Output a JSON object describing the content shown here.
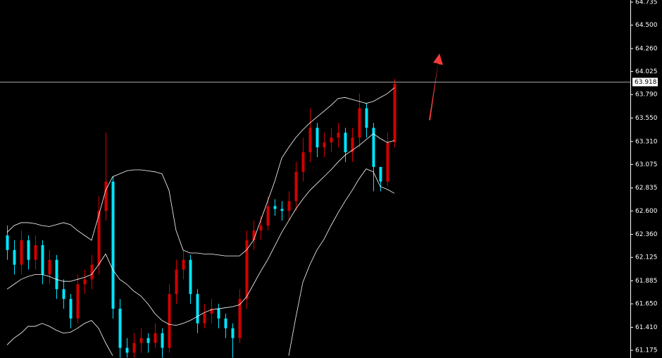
{
  "chart_data": {
    "type": "candlestick",
    "ohlc": {
      "open": [
        62.35,
        62.2,
        62.05,
        62.3,
        62.1,
        62.25,
        61.95,
        62.1,
        61.8,
        61.7,
        61.5,
        61.85,
        61.9,
        62.05,
        62.6,
        62.9,
        61.6,
        61.2,
        61.15,
        61.25,
        61.3,
        61.25,
        61.35,
        61.2,
        61.75,
        62.0,
        62.1,
        61.75,
        61.45,
        61.55,
        61.6,
        61.5,
        61.4,
        61.3,
        61.7,
        62.3,
        62.4,
        62.45,
        62.65,
        62.62,
        62.6,
        62.7,
        63.0,
        63.2,
        63.45,
        63.25,
        63.3,
        63.35,
        63.4,
        63.2,
        63.35,
        63.65,
        63.45,
        63.05,
        62.9,
        63.3
      ],
      "high": [
        62.45,
        62.3,
        62.4,
        62.35,
        62.35,
        62.3,
        62.2,
        62.15,
        61.9,
        61.75,
        61.95,
        62.0,
        62.15,
        62.75,
        63.4,
        62.95,
        61.7,
        61.3,
        61.35,
        61.4,
        61.35,
        61.45,
        61.4,
        61.85,
        62.1,
        62.2,
        62.15,
        61.8,
        61.65,
        61.7,
        61.65,
        61.55,
        61.45,
        61.8,
        62.4,
        62.5,
        62.55,
        62.75,
        62.72,
        62.7,
        62.8,
        63.1,
        63.35,
        63.65,
        63.5,
        63.4,
        63.45,
        63.5,
        63.45,
        63.45,
        63.8,
        63.7,
        63.5,
        63.05,
        63.4,
        63.95
      ],
      "low": [
        62.1,
        61.95,
        61.95,
        62.0,
        62.0,
        61.85,
        61.85,
        61.7,
        61.6,
        61.4,
        61.45,
        61.75,
        61.8,
        61.95,
        62.5,
        61.5,
        61.1,
        61.1,
        61.1,
        61.15,
        61.15,
        61.2,
        61.1,
        61.15,
        61.65,
        61.9,
        61.65,
        61.35,
        61.4,
        61.45,
        61.4,
        61.3,
        61.1,
        61.25,
        61.6,
        62.2,
        62.3,
        62.4,
        62.55,
        62.5,
        62.5,
        62.6,
        62.9,
        63.1,
        63.15,
        63.15,
        63.2,
        63.25,
        63.1,
        63.1,
        63.25,
        63.35,
        62.8,
        62.8,
        62.85,
        63.25
      ],
      "close": [
        62.2,
        62.05,
        62.3,
        62.1,
        62.25,
        61.95,
        62.1,
        61.8,
        61.7,
        61.5,
        61.85,
        61.9,
        62.05,
        62.6,
        62.9,
        61.6,
        61.2,
        61.15,
        61.25,
        61.3,
        61.25,
        61.35,
        61.2,
        61.75,
        62.0,
        62.1,
        61.75,
        61.45,
        61.55,
        61.6,
        61.5,
        61.4,
        61.3,
        61.7,
        62.3,
        62.4,
        62.45,
        62.65,
        62.62,
        62.6,
        62.7,
        63.0,
        63.2,
        63.45,
        63.25,
        63.3,
        63.35,
        63.4,
        63.2,
        63.35,
        63.65,
        63.45,
        63.05,
        62.9,
        63.3,
        63.9
      ]
    },
    "up_color": "#d40000",
    "down_color": "#00e5ff",
    "bands": {
      "upper": [
        62.38,
        62.45,
        62.48,
        62.48,
        62.47,
        62.45,
        62.44,
        62.46,
        62.48,
        62.46,
        62.4,
        62.35,
        62.3,
        62.55,
        62.81,
        62.95,
        62.98,
        63.01,
        63.02,
        63.02,
        63.01,
        63.0,
        62.98,
        62.81,
        62.4,
        62.2,
        62.17,
        62.17,
        62.16,
        62.16,
        62.15,
        62.14,
        62.14,
        62.14,
        62.2,
        62.3,
        62.5,
        62.7,
        62.9,
        63.14,
        63.25,
        63.35,
        63.43,
        63.5,
        63.56,
        63.62,
        63.68,
        63.75,
        63.76,
        63.74,
        63.72,
        63.7,
        63.72,
        63.76,
        63.8,
        63.86
      ],
      "middle": [
        61.8,
        61.85,
        61.9,
        61.93,
        61.95,
        61.95,
        61.93,
        61.9,
        61.88,
        61.88,
        61.9,
        61.92,
        61.95,
        62.05,
        62.16,
        62.0,
        61.9,
        61.85,
        61.78,
        61.73,
        61.65,
        61.55,
        61.48,
        61.44,
        61.43,
        61.45,
        61.48,
        61.52,
        61.56,
        61.59,
        61.6,
        61.61,
        61.62,
        61.64,
        61.72,
        61.85,
        61.98,
        62.1,
        62.24,
        62.38,
        62.5,
        62.62,
        62.72,
        62.81,
        62.88,
        62.95,
        63.02,
        63.1,
        63.17,
        63.22,
        63.27,
        63.33,
        63.39,
        63.34,
        63.3,
        63.32
      ],
      "lower": [
        61.23,
        61.3,
        61.35,
        61.42,
        61.42,
        61.45,
        61.42,
        61.38,
        61.35,
        61.36,
        61.4,
        61.45,
        61.48,
        61.4,
        61.25,
        61.12,
        null,
        null,
        null,
        null,
        null,
        null,
        null,
        null,
        null,
        null,
        null,
        null,
        null,
        null,
        null,
        null,
        null,
        null,
        null,
        null,
        null,
        null,
        null,
        null,
        61.12,
        61.51,
        61.87,
        62.05,
        62.2,
        62.31,
        62.45,
        62.58,
        62.7,
        62.81,
        62.93,
        63.03,
        63.0,
        62.85,
        62.82,
        62.78
      ]
    },
    "band_color": "#ffffff",
    "current_price": 63.918,
    "ylim": [
      61.096,
      64.757
    ],
    "yticks": [
      {
        "value": 64.735,
        "label": "64.735"
      },
      {
        "value": 64.5,
        "label": "64.500"
      },
      {
        "value": 64.26,
        "label": "64.260"
      },
      {
        "value": 64.025,
        "label": "64.025"
      },
      {
        "value": 63.79,
        "label": "63.790"
      },
      {
        "value": 63.55,
        "label": "63.550"
      },
      {
        "value": 63.31,
        "label": "63.310"
      },
      {
        "value": 63.075,
        "label": "63.075"
      },
      {
        "value": 62.835,
        "label": "62.835"
      },
      {
        "value": 62.6,
        "label": "62.600"
      },
      {
        "value": 62.36,
        "label": "62.360"
      },
      {
        "value": 62.125,
        "label": "62.125"
      },
      {
        "value": 61.885,
        "label": "61.885"
      },
      {
        "value": 61.65,
        "label": "61.650"
      },
      {
        "value": 61.41,
        "label": "61.410"
      },
      {
        "value": 61.175,
        "label": "61.175"
      }
    ]
  }
}
